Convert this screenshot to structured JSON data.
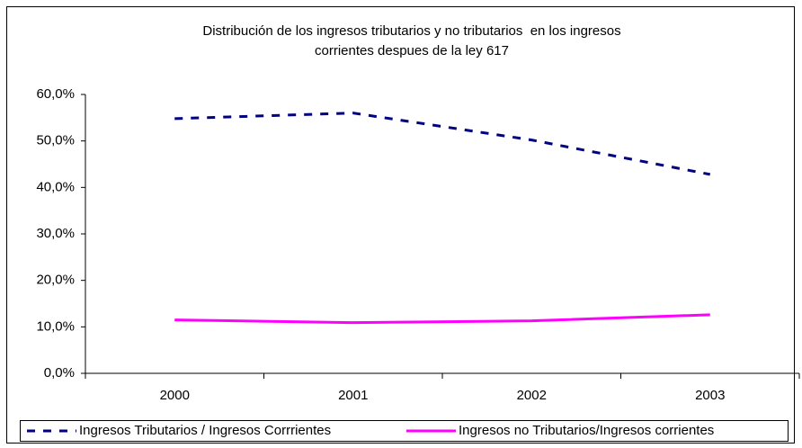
{
  "chart_data": {
    "type": "line",
    "title": [
      "Distribución de los ingresos tributarios y no tributarios  en los ingresos",
      "corrientes despues de la ley 617"
    ],
    "categories": [
      "2000",
      "2001",
      "2002",
      "2003"
    ],
    "series": [
      {
        "name": "Ingresos Tributarios / Ingresos Corrrientes",
        "color": "#000080",
        "dashed": true,
        "values": [
          54.8,
          56.0,
          50.2,
          42.8
        ]
      },
      {
        "name": "Ingresos no Tributarios/Ingresos corrientes",
        "color": "#ff00ff",
        "dashed": false,
        "values": [
          11.5,
          10.9,
          11.3,
          12.6
        ]
      }
    ],
    "ylim": [
      0,
      60
    ],
    "yticks": [
      {
        "value": 0,
        "label": "0,0%"
      },
      {
        "value": 10,
        "label": "10,0%"
      },
      {
        "value": 20,
        "label": "20,0%"
      },
      {
        "value": 30,
        "label": "30,0%"
      },
      {
        "value": 40,
        "label": "40,0%"
      },
      {
        "value": 50,
        "label": "50,0%"
      },
      {
        "value": 60,
        "label": "60,0%"
      }
    ],
    "legend": "bottom"
  }
}
